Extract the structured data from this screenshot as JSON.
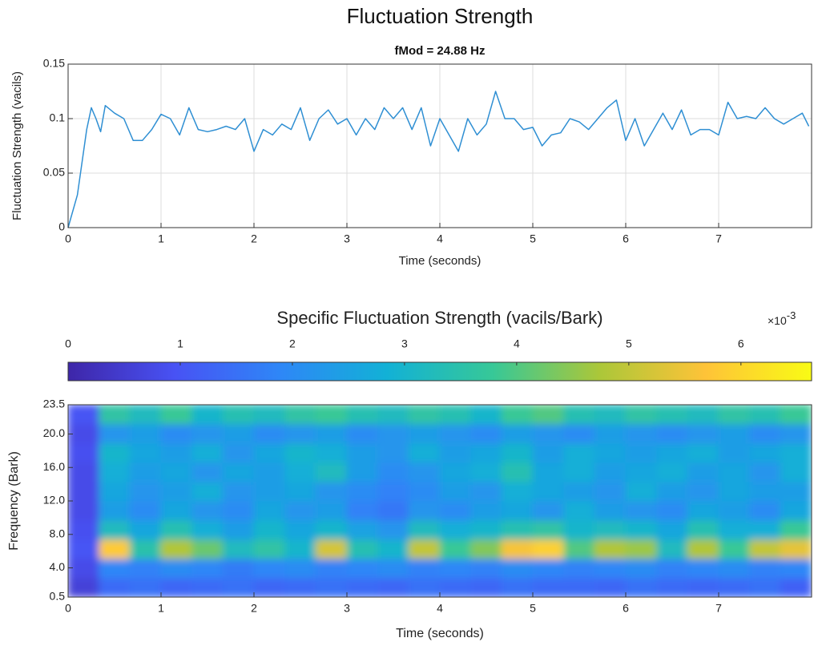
{
  "chart_data": [
    {
      "type": "line",
      "title": "Fluctuation Strength",
      "subtitle": "fMod = 24.88 Hz",
      "xlabel": "Time (seconds)",
      "ylabel": "Fluctuation Strength (vacils)",
      "xlim": [
        0,
        8
      ],
      "xticks": [
        0,
        1,
        2,
        3,
        4,
        5,
        6,
        7
      ],
      "ylim": [
        0,
        0.15
      ],
      "yticks": [
        0,
        0.05,
        0.1,
        0.15
      ],
      "grid": true,
      "x": [
        0,
        0.1,
        0.2,
        0.25,
        0.3,
        0.35,
        0.4,
        0.5,
        0.6,
        0.7,
        0.8,
        0.9,
        1.0,
        1.1,
        1.2,
        1.3,
        1.4,
        1.5,
        1.6,
        1.7,
        1.8,
        1.9,
        2.0,
        2.1,
        2.2,
        2.3,
        2.4,
        2.5,
        2.6,
        2.7,
        2.8,
        2.9,
        3.0,
        3.1,
        3.2,
        3.3,
        3.4,
        3.5,
        3.6,
        3.7,
        3.8,
        3.9,
        4.0,
        4.1,
        4.2,
        4.3,
        4.4,
        4.5,
        4.6,
        4.7,
        4.8,
        4.9,
        5.0,
        5.1,
        5.2,
        5.3,
        5.4,
        5.5,
        5.6,
        5.7,
        5.8,
        5.9,
        6.0,
        6.1,
        6.2,
        6.3,
        6.4,
        6.5,
        6.6,
        6.7,
        6.8,
        6.9,
        7.0,
        7.1,
        7.2,
        7.3,
        7.4,
        7.5,
        7.6,
        7.7,
        7.8,
        7.9,
        7.97
      ],
      "series": [
        {
          "color": "#2f8fd3",
          "values": [
            0,
            0.03,
            0.09,
            0.11,
            0.1,
            0.088,
            0.112,
            0.105,
            0.1,
            0.08,
            0.08,
            0.09,
            0.104,
            0.1,
            0.085,
            0.11,
            0.09,
            0.088,
            0.09,
            0.093,
            0.09,
            0.1,
            0.07,
            0.09,
            0.085,
            0.095,
            0.09,
            0.11,
            0.08,
            0.1,
            0.108,
            0.095,
            0.1,
            0.085,
            0.1,
            0.09,
            0.11,
            0.1,
            0.11,
            0.09,
            0.11,
            0.075,
            0.1,
            0.085,
            0.07,
            0.1,
            0.085,
            0.095,
            0.125,
            0.1,
            0.1,
            0.09,
            0.092,
            0.075,
            0.085,
            0.087,
            0.1,
            0.097,
            0.09,
            0.1,
            0.11,
            0.117,
            0.08,
            0.1,
            0.075,
            0.09,
            0.105,
            0.09,
            0.108,
            0.085,
            0.09,
            0.09,
            0.085,
            0.115,
            0.1,
            0.102,
            0.1,
            0.11,
            0.1,
            0.095,
            0.1,
            0.105,
            0.093
          ]
        }
      ]
    },
    {
      "type": "heatmap",
      "xlabel": "Time (seconds)",
      "ylabel": "Frequency (Bark)",
      "xlim": [
        0,
        8
      ],
      "xticks": [
        0,
        1,
        2,
        3,
        4,
        5,
        6,
        7
      ],
      "ylim": [
        0.5,
        23.5
      ],
      "yticks": [
        0.5,
        {
          "value": 4,
          "label": "4.0"
        },
        {
          "value": 8,
          "label": "8.0"
        },
        {
          "value": 12,
          "label": "12.0"
        },
        {
          "value": 16,
          "label": "16.0"
        },
        {
          "value": 20,
          "label": "20.0"
        },
        23.5
      ],
      "colormap": "parula",
      "colorbar": {
        "title": "Specific Fluctuation Strength (vacils/Bark)",
        "multiplier": "×10",
        "multiplier_exponent": "-3",
        "lim": [
          0,
          6.63
        ],
        "ticks": [
          0,
          1,
          2,
          3,
          4,
          5,
          6
        ]
      },
      "x": [
        0.17,
        0.5,
        0.83,
        1.17,
        1.5,
        1.83,
        2.17,
        2.5,
        2.83,
        3.17,
        3.5,
        3.83,
        4.17,
        4.5,
        4.83,
        5.17,
        5.5,
        5.83,
        6.17,
        6.5,
        6.83,
        7.17,
        7.5,
        7.83
      ],
      "y": [
        1.65,
        3.95,
        6.25,
        8.55,
        10.85,
        13.15,
        15.45,
        17.75,
        20.05,
        22.35
      ],
      "z": [
        [
          0.6,
          1.4,
          1.5,
          1.3,
          1.4,
          1.5,
          1.3,
          1.4,
          1.5,
          1.4,
          1.3,
          1.5,
          1.4,
          1.3,
          1.5,
          1.4,
          1.4,
          1.3,
          1.5,
          1.4,
          1.3,
          1.4,
          1.5,
          1.2
        ],
        [
          0.8,
          1.9,
          1.8,
          2.0,
          1.9,
          1.7,
          1.9,
          2.0,
          1.8,
          1.9,
          2.0,
          1.8,
          1.9,
          1.8,
          2.0,
          1.9,
          1.8,
          1.9,
          2.0,
          1.8,
          1.9,
          2.0,
          1.8,
          1.9
        ],
        [
          1.0,
          5.8,
          3.5,
          4.8,
          4.2,
          3.2,
          3.6,
          3.0,
          5.2,
          3.4,
          3.0,
          5.0,
          3.8,
          4.4,
          5.6,
          5.9,
          4.0,
          4.8,
          4.6,
          3.2,
          4.8,
          3.8,
          5.0,
          5.4
        ],
        [
          0.9,
          3.2,
          2.6,
          3.4,
          2.8,
          2.4,
          3.0,
          2.6,
          3.0,
          2.5,
          2.2,
          3.2,
          2.8,
          3.0,
          3.4,
          3.6,
          3.0,
          3.2,
          3.0,
          2.6,
          3.4,
          2.8,
          2.8,
          3.8
        ],
        [
          0.8,
          2.4,
          2.0,
          2.6,
          2.2,
          2.0,
          2.6,
          2.2,
          2.4,
          1.8,
          1.6,
          2.2,
          2.0,
          2.4,
          2.6,
          2.2,
          2.8,
          2.4,
          2.2,
          2.0,
          2.6,
          2.4,
          2.0,
          2.6
        ],
        [
          0.8,
          2.6,
          2.2,
          2.4,
          2.8,
          2.2,
          2.4,
          2.6,
          2.2,
          2.0,
          1.8,
          2.0,
          2.4,
          2.2,
          2.8,
          2.6,
          2.4,
          2.2,
          2.8,
          2.4,
          2.2,
          2.6,
          2.4,
          2.4
        ],
        [
          0.8,
          2.8,
          2.4,
          2.6,
          2.2,
          2.6,
          2.4,
          2.8,
          3.2,
          2.4,
          2.0,
          2.2,
          2.6,
          2.8,
          3.4,
          2.6,
          2.8,
          2.4,
          2.6,
          2.8,
          2.4,
          2.6,
          2.2,
          2.8
        ],
        [
          0.9,
          3.0,
          2.6,
          2.4,
          2.8,
          2.2,
          2.6,
          3.0,
          2.8,
          2.4,
          2.2,
          2.8,
          2.4,
          2.6,
          3.0,
          2.4,
          2.8,
          2.6,
          2.4,
          2.6,
          2.8,
          2.4,
          2.6,
          2.8
        ],
        [
          0.8,
          2.2,
          2.4,
          2.0,
          2.2,
          2.4,
          2.0,
          2.2,
          2.4,
          2.0,
          2.2,
          2.4,
          2.2,
          2.0,
          2.4,
          2.2,
          2.0,
          2.4,
          2.2,
          2.0,
          2.2,
          2.4,
          2.0,
          2.2
        ],
        [
          1.0,
          3.6,
          3.2,
          3.8,
          3.0,
          3.4,
          3.2,
          3.6,
          3.8,
          3.4,
          3.2,
          3.6,
          3.4,
          3.0,
          3.8,
          4.0,
          3.4,
          3.2,
          3.6,
          3.4,
          3.2,
          3.6,
          3.4,
          3.8
        ]
      ]
    }
  ]
}
